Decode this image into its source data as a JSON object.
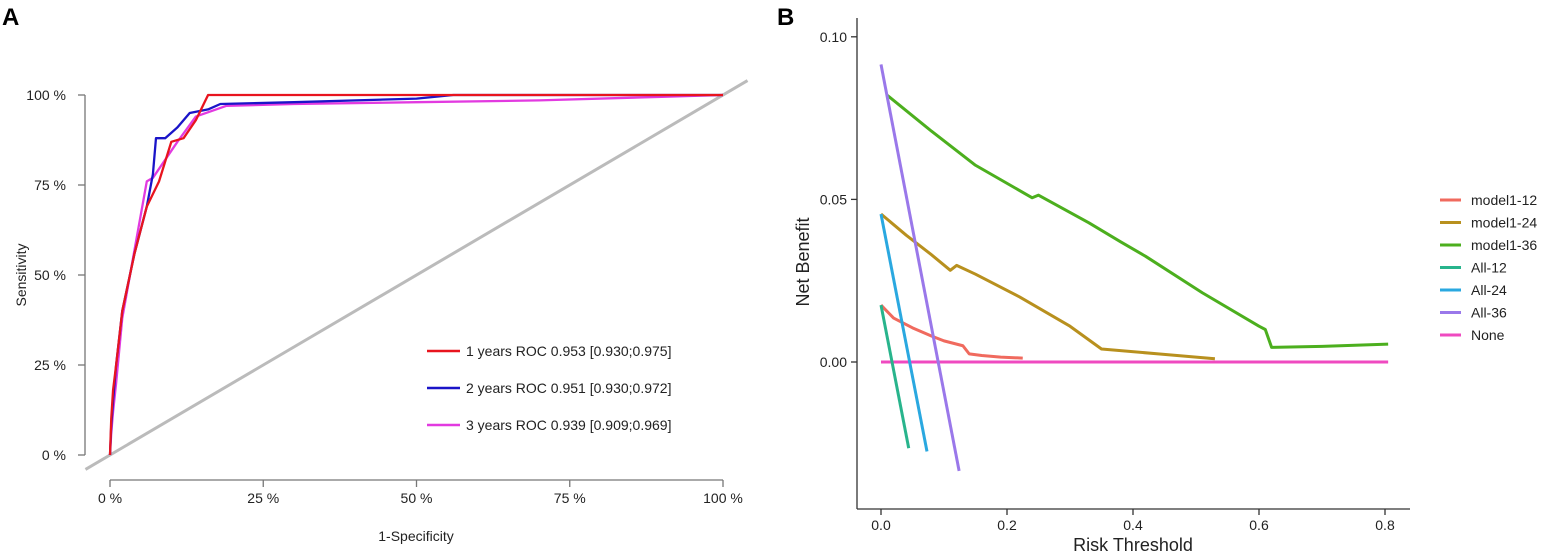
{
  "panels": {
    "a": {
      "label": "A"
    },
    "b": {
      "label": "B"
    }
  },
  "chart_data": [
    {
      "type": "line",
      "title": "",
      "xlabel": "1-Specificity",
      "ylabel": "Sensitivity",
      "xlim": [
        0,
        1
      ],
      "ylim": [
        0,
        1
      ],
      "x_ticks": [
        0,
        0.25,
        0.5,
        0.75,
        1.0
      ],
      "x_tick_labels": [
        "0 %",
        "25 %",
        "50 %",
        "75 %",
        "100 %"
      ],
      "y_ticks": [
        0,
        0.25,
        0.5,
        0.75,
        1.0
      ],
      "y_tick_labels": [
        "0 %",
        "25 %",
        "50 %",
        "75 %",
        "100 %"
      ],
      "grid": false,
      "legend_position": "bottom-right",
      "reference_line": {
        "color": "#bbbbbb",
        "x": [
          -0.04,
          1.04
        ],
        "y": [
          -0.04,
          1.04
        ]
      },
      "series": [
        {
          "name": "1 years ROC",
          "auc_text": "0.953 [0.930;0.975]",
          "color": "#e8141e",
          "x": [
            0,
            0.002,
            0.005,
            0.01,
            0.02,
            0.04,
            0.06,
            0.08,
            0.1,
            0.12,
            0.14,
            0.16,
            0.2,
            0.3,
            0.5,
            0.7,
            1.0
          ],
          "y": [
            0,
            0.1,
            0.18,
            0.25,
            0.4,
            0.56,
            0.69,
            0.76,
            0.87,
            0.88,
            0.93,
            1.0,
            1.0,
            1.0,
            1.0,
            1.0,
            1.0
          ]
        },
        {
          "name": "2 years ROC",
          "auc_text": "0.951 [0.930;0.972]",
          "color": "#1a14c8",
          "x": [
            0,
            0.002,
            0.005,
            0.01,
            0.02,
            0.04,
            0.06,
            0.07,
            0.075,
            0.09,
            0.11,
            0.13,
            0.16,
            0.18,
            0.3,
            0.5,
            0.56,
            0.8,
            1.0
          ],
          "y": [
            0,
            0.08,
            0.15,
            0.25,
            0.4,
            0.56,
            0.69,
            0.78,
            0.88,
            0.88,
            0.91,
            0.95,
            0.96,
            0.975,
            0.98,
            0.99,
            1.0,
            1.0,
            1.0
          ]
        },
        {
          "name": "3 years ROC",
          "auc_text": "0.939 [0.909;0.969]",
          "color": "#e23ae0",
          "x": [
            0,
            0.002,
            0.005,
            0.01,
            0.02,
            0.04,
            0.06,
            0.07,
            0.09,
            0.11,
            0.14,
            0.19,
            0.3,
            0.5,
            0.7,
            0.9,
            1.0
          ],
          "y": [
            0,
            0.06,
            0.12,
            0.2,
            0.38,
            0.57,
            0.76,
            0.77,
            0.82,
            0.87,
            0.94,
            0.97,
            0.975,
            0.98,
            0.985,
            0.995,
            1.0
          ]
        }
      ]
    },
    {
      "type": "line",
      "title": "",
      "xlabel": "Risk Threshold",
      "ylabel": "Net Benefit",
      "xlim": [
        -0.04,
        0.84
      ],
      "ylim": [
        -0.045,
        0.107
      ],
      "x_ticks": [
        0.0,
        0.2,
        0.4,
        0.6,
        0.8
      ],
      "x_tick_labels": [
        "0.0",
        "0.2",
        "0.4",
        "0.6",
        "0.8"
      ],
      "y_ticks": [
        0.0,
        0.05,
        0.1
      ],
      "y_tick_labels": [
        "0.00",
        "0.05",
        "0.10"
      ],
      "grid": false,
      "legend_position": "right",
      "series": [
        {
          "name": "model1-12",
          "color": "#f06a5e",
          "x": [
            0.0,
            0.02,
            0.05,
            0.08,
            0.1,
            0.13,
            0.14,
            0.16,
            0.19,
            0.225
          ],
          "y": [
            0.0175,
            0.0135,
            0.0105,
            0.008,
            0.0065,
            0.005,
            0.0025,
            0.002,
            0.0015,
            0.0012
          ]
        },
        {
          "name": "model1-24",
          "color": "#b8901e",
          "x": [
            0.0,
            0.04,
            0.08,
            0.11,
            0.12,
            0.15,
            0.22,
            0.3,
            0.35,
            0.44,
            0.53
          ],
          "y": [
            0.0455,
            0.039,
            0.033,
            0.0282,
            0.0297,
            0.027,
            0.02,
            0.011,
            0.004,
            0.0025,
            0.001
          ]
        },
        {
          "name": "model1-36",
          "color": "#4caf1e",
          "x": [
            0.01,
            0.08,
            0.15,
            0.24,
            0.25,
            0.33,
            0.38,
            0.42,
            0.51,
            0.6,
            0.61,
            0.62,
            0.7,
            0.805
          ],
          "y": [
            0.082,
            0.071,
            0.0605,
            0.0505,
            0.0513,
            0.0428,
            0.037,
            0.0325,
            0.0213,
            0.011,
            0.01,
            0.0045,
            0.0048,
            0.0055
          ]
        },
        {
          "name": "All-12",
          "color": "#28b48c",
          "x": [
            0.0,
            0.044
          ],
          "y": [
            0.0175,
            -0.0265
          ]
        },
        {
          "name": "All-24",
          "color": "#2aa8e0",
          "x": [
            0.0,
            0.073
          ],
          "y": [
            0.0455,
            -0.0275
          ]
        },
        {
          "name": "All-36",
          "color": "#9a78ea",
          "x": [
            0.0,
            0.124
          ],
          "y": [
            0.0915,
            -0.0335
          ]
        },
        {
          "name": "None",
          "color": "#ef4ac0",
          "x": [
            0.0,
            0.805
          ],
          "y": [
            0.0,
            0.0
          ]
        }
      ]
    }
  ]
}
